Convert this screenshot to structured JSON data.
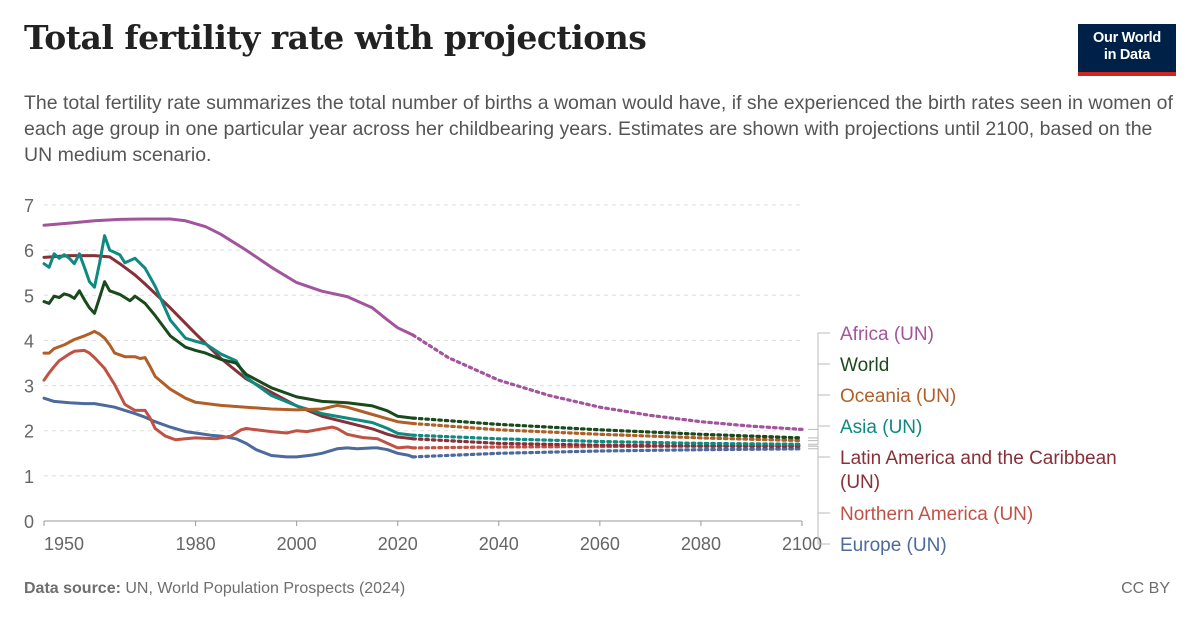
{
  "header": {
    "title": "Total fertility rate with projections",
    "subtitle": "The total fertility rate summarizes the total number of births a woman would have, if she experienced the birth rates seen in women of each age group in one particular year across her childbearing years. Estimates are shown with projections until 2100, based on the UN medium scenario."
  },
  "logo": {
    "line1": "Our World",
    "line2": "in Data",
    "bg_color": "#002147",
    "accent_color": "#ce261e"
  },
  "footer": {
    "source_label": "Data source:",
    "source_text": " UN, World Population Prospects (2024)",
    "license": "CC BY"
  },
  "chart_data": {
    "type": "line",
    "title": "Total fertility rate with projections",
    "xlabel": "",
    "ylabel": "",
    "xlim": [
      1950,
      2100
    ],
    "ylim": [
      0,
      7
    ],
    "x_ticks": [
      1950,
      1980,
      2000,
      2020,
      2040,
      2060,
      2080,
      2100
    ],
    "y_ticks": [
      0,
      1,
      2,
      3,
      4,
      5,
      6,
      7
    ],
    "grid": "horizontal dashed",
    "legend": "right, labels at line ends",
    "projection_start": 2023,
    "projection_style": "dotted",
    "series": [
      {
        "name": "Africa (UN)",
        "color": "#a2559c",
        "estimates": [
          [
            1950,
            6.55
          ],
          [
            1955,
            6.6
          ],
          [
            1960,
            6.65
          ],
          [
            1965,
            6.68
          ],
          [
            1970,
            6.69
          ],
          [
            1975,
            6.69
          ],
          [
            1978,
            6.65
          ],
          [
            1982,
            6.52
          ],
          [
            1985,
            6.35
          ],
          [
            1990,
            6.0
          ],
          [
            1995,
            5.62
          ],
          [
            2000,
            5.28
          ],
          [
            2005,
            5.09
          ],
          [
            2010,
            4.97
          ],
          [
            2015,
            4.72
          ],
          [
            2018,
            4.45
          ],
          [
            2020,
            4.28
          ],
          [
            2023,
            4.12
          ]
        ],
        "projection": [
          [
            2023,
            4.12
          ],
          [
            2030,
            3.62
          ],
          [
            2040,
            3.12
          ],
          [
            2050,
            2.78
          ],
          [
            2060,
            2.52
          ],
          [
            2070,
            2.34
          ],
          [
            2080,
            2.2
          ],
          [
            2090,
            2.1
          ],
          [
            2100,
            2.03
          ]
        ]
      },
      {
        "name": "World",
        "color": "#1a4a1c",
        "estimates": [
          [
            1950,
            4.86
          ],
          [
            1951,
            4.82
          ],
          [
            1952,
            4.98
          ],
          [
            1953,
            4.95
          ],
          [
            1954,
            5.03
          ],
          [
            1955,
            5.0
          ],
          [
            1956,
            4.93
          ],
          [
            1957,
            5.1
          ],
          [
            1958,
            4.9
          ],
          [
            1959,
            4.72
          ],
          [
            1960,
            4.6
          ],
          [
            1961,
            4.95
          ],
          [
            1962,
            5.3
          ],
          [
            1963,
            5.1
          ],
          [
            1965,
            5.02
          ],
          [
            1967,
            4.88
          ],
          [
            1968,
            4.98
          ],
          [
            1970,
            4.82
          ],
          [
            1972,
            4.55
          ],
          [
            1975,
            4.1
          ],
          [
            1978,
            3.85
          ],
          [
            1980,
            3.78
          ],
          [
            1982,
            3.72
          ],
          [
            1985,
            3.58
          ],
          [
            1988,
            3.5
          ],
          [
            1990,
            3.25
          ],
          [
            1995,
            2.95
          ],
          [
            2000,
            2.75
          ],
          [
            2005,
            2.65
          ],
          [
            2010,
            2.62
          ],
          [
            2015,
            2.55
          ],
          [
            2018,
            2.44
          ],
          [
            2020,
            2.32
          ],
          [
            2023,
            2.28
          ]
        ],
        "projection": [
          [
            2023,
            2.28
          ],
          [
            2040,
            2.14
          ],
          [
            2060,
            2.02
          ],
          [
            2080,
            1.92
          ],
          [
            2100,
            1.84
          ]
        ]
      },
      {
        "name": "Oceania (UN)",
        "color": "#b15f28",
        "estimates": [
          [
            1950,
            3.72
          ],
          [
            1951,
            3.72
          ],
          [
            1952,
            3.82
          ],
          [
            1954,
            3.9
          ],
          [
            1956,
            4.02
          ],
          [
            1958,
            4.1
          ],
          [
            1959,
            4.15
          ],
          [
            1960,
            4.2
          ],
          [
            1961,
            4.14
          ],
          [
            1962,
            4.05
          ],
          [
            1963,
            3.9
          ],
          [
            1964,
            3.72
          ],
          [
            1966,
            3.64
          ],
          [
            1968,
            3.64
          ],
          [
            1969,
            3.6
          ],
          [
            1970,
            3.62
          ],
          [
            1971,
            3.42
          ],
          [
            1972,
            3.2
          ],
          [
            1975,
            2.92
          ],
          [
            1978,
            2.72
          ],
          [
            1980,
            2.63
          ],
          [
            1985,
            2.56
          ],
          [
            1990,
            2.52
          ],
          [
            1995,
            2.48
          ],
          [
            2000,
            2.46
          ],
          [
            2005,
            2.48
          ],
          [
            2008,
            2.56
          ],
          [
            2010,
            2.52
          ],
          [
            2015,
            2.36
          ],
          [
            2020,
            2.2
          ],
          [
            2023,
            2.16
          ]
        ],
        "projection": [
          [
            2023,
            2.16
          ],
          [
            2040,
            2.02
          ],
          [
            2060,
            1.92
          ],
          [
            2080,
            1.84
          ],
          [
            2100,
            1.78
          ]
        ]
      },
      {
        "name": "Asia (UN)",
        "color": "#0e8a80",
        "estimates": [
          [
            1950,
            5.7
          ],
          [
            1951,
            5.62
          ],
          [
            1952,
            5.92
          ],
          [
            1953,
            5.82
          ],
          [
            1954,
            5.9
          ],
          [
            1955,
            5.82
          ],
          [
            1956,
            5.7
          ],
          [
            1957,
            5.92
          ],
          [
            1958,
            5.62
          ],
          [
            1959,
            5.3
          ],
          [
            1960,
            5.18
          ],
          [
            1961,
            5.72
          ],
          [
            1962,
            6.32
          ],
          [
            1963,
            6.0
          ],
          [
            1965,
            5.9
          ],
          [
            1966,
            5.72
          ],
          [
            1968,
            5.82
          ],
          [
            1970,
            5.6
          ],
          [
            1972,
            5.2
          ],
          [
            1975,
            4.45
          ],
          [
            1978,
            4.05
          ],
          [
            1980,
            3.98
          ],
          [
            1982,
            3.92
          ],
          [
            1985,
            3.7
          ],
          [
            1988,
            3.55
          ],
          [
            1990,
            3.18
          ],
          [
            1995,
            2.78
          ],
          [
            2000,
            2.55
          ],
          [
            2005,
            2.38
          ],
          [
            2010,
            2.28
          ],
          [
            2015,
            2.18
          ],
          [
            2018,
            2.05
          ],
          [
            2020,
            1.94
          ],
          [
            2023,
            1.9
          ]
        ],
        "projection": [
          [
            2023,
            1.9
          ],
          [
            2040,
            1.82
          ],
          [
            2060,
            1.76
          ],
          [
            2080,
            1.72
          ],
          [
            2100,
            1.7
          ]
        ]
      },
      {
        "name": "Latin America and the Caribbean (UN)",
        "color": "#883039",
        "estimates": [
          [
            1950,
            5.84
          ],
          [
            1955,
            5.88
          ],
          [
            1960,
            5.88
          ],
          [
            1963,
            5.85
          ],
          [
            1965,
            5.7
          ],
          [
            1968,
            5.45
          ],
          [
            1970,
            5.25
          ],
          [
            1975,
            4.72
          ],
          [
            1980,
            4.15
          ],
          [
            1985,
            3.6
          ],
          [
            1990,
            3.15
          ],
          [
            1995,
            2.85
          ],
          [
            2000,
            2.55
          ],
          [
            2005,
            2.32
          ],
          [
            2010,
            2.18
          ],
          [
            2015,
            2.04
          ],
          [
            2018,
            1.92
          ],
          [
            2020,
            1.86
          ],
          [
            2023,
            1.82
          ]
        ],
        "projection": [
          [
            2023,
            1.82
          ],
          [
            2040,
            1.72
          ],
          [
            2060,
            1.68
          ],
          [
            2080,
            1.66
          ],
          [
            2100,
            1.66
          ]
        ]
      },
      {
        "name": "Northern America (UN)",
        "color": "#c05245",
        "estimates": [
          [
            1950,
            3.12
          ],
          [
            1951,
            3.28
          ],
          [
            1952,
            3.42
          ],
          [
            1953,
            3.55
          ],
          [
            1955,
            3.7
          ],
          [
            1956,
            3.76
          ],
          [
            1958,
            3.78
          ],
          [
            1959,
            3.72
          ],
          [
            1960,
            3.62
          ],
          [
            1962,
            3.38
          ],
          [
            1964,
            3.02
          ],
          [
            1966,
            2.58
          ],
          [
            1968,
            2.45
          ],
          [
            1970,
            2.45
          ],
          [
            1971,
            2.28
          ],
          [
            1972,
            2.05
          ],
          [
            1974,
            1.88
          ],
          [
            1976,
            1.8
          ],
          [
            1978,
            1.82
          ],
          [
            1980,
            1.84
          ],
          [
            1984,
            1.82
          ],
          [
            1987,
            1.88
          ],
          [
            1989,
            2.02
          ],
          [
            1990,
            2.05
          ],
          [
            1992,
            2.02
          ],
          [
            1995,
            1.98
          ],
          [
            1998,
            1.95
          ],
          [
            2000,
            2.0
          ],
          [
            2002,
            1.98
          ],
          [
            2005,
            2.04
          ],
          [
            2007,
            2.08
          ],
          [
            2008,
            2.05
          ],
          [
            2010,
            1.92
          ],
          [
            2013,
            1.85
          ],
          [
            2016,
            1.82
          ],
          [
            2018,
            1.72
          ],
          [
            2020,
            1.62
          ],
          [
            2022,
            1.64
          ],
          [
            2023,
            1.62
          ]
        ],
        "projection": [
          [
            2023,
            1.62
          ],
          [
            2040,
            1.64
          ],
          [
            2060,
            1.65
          ],
          [
            2080,
            1.66
          ],
          [
            2100,
            1.66
          ]
        ]
      },
      {
        "name": "Europe (UN)",
        "color": "#4c6a9c",
        "estimates": [
          [
            1950,
            2.72
          ],
          [
            1952,
            2.65
          ],
          [
            1955,
            2.62
          ],
          [
            1958,
            2.6
          ],
          [
            1960,
            2.6
          ],
          [
            1962,
            2.56
          ],
          [
            1964,
            2.52
          ],
          [
            1966,
            2.45
          ],
          [
            1968,
            2.38
          ],
          [
            1970,
            2.3
          ],
          [
            1972,
            2.2
          ],
          [
            1975,
            2.08
          ],
          [
            1978,
            1.98
          ],
          [
            1980,
            1.95
          ],
          [
            1983,
            1.9
          ],
          [
            1985,
            1.88
          ],
          [
            1988,
            1.82
          ],
          [
            1990,
            1.72
          ],
          [
            1992,
            1.58
          ],
          [
            1995,
            1.45
          ],
          [
            1998,
            1.42
          ],
          [
            2000,
            1.42
          ],
          [
            2003,
            1.46
          ],
          [
            2005,
            1.5
          ],
          [
            2008,
            1.6
          ],
          [
            2010,
            1.62
          ],
          [
            2012,
            1.6
          ],
          [
            2015,
            1.62
          ],
          [
            2016,
            1.62
          ],
          [
            2018,
            1.58
          ],
          [
            2020,
            1.5
          ],
          [
            2022,
            1.46
          ],
          [
            2023,
            1.42
          ]
        ],
        "projection": [
          [
            2023,
            1.42
          ],
          [
            2040,
            1.5
          ],
          [
            2060,
            1.55
          ],
          [
            2080,
            1.58
          ],
          [
            2100,
            1.6
          ]
        ]
      }
    ]
  }
}
